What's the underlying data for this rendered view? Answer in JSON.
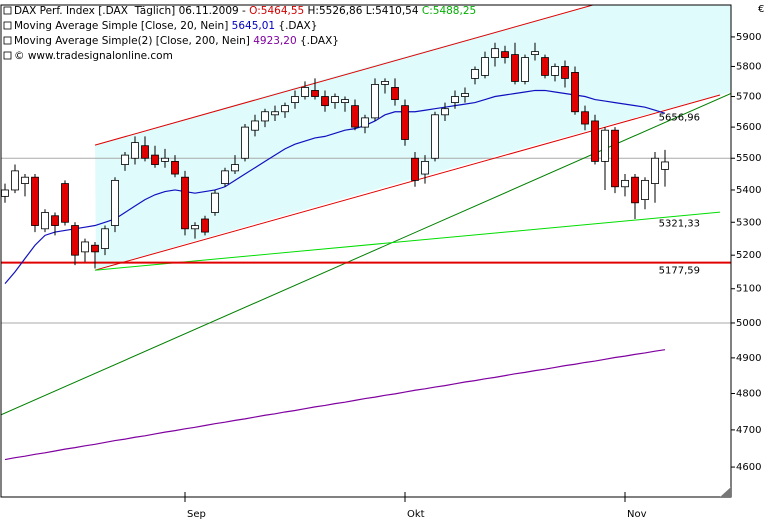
{
  "chart_data": {
    "type": "candlestick",
    "header": [
      [
        {
          "text": "DAX Perf. Index [.DAX  Täglich] 06.11.2009 - "
        },
        {
          "text": "O:5464,55",
          "color": "#d00000"
        },
        {
          "text": " H:5526,86 L:5410,54 "
        },
        {
          "text": "C:5488,25",
          "color": "#00b000"
        }
      ],
      [
        {
          "text": "Moving Average Simple [Close, 20, Nein] "
        },
        {
          "text": "5645,01",
          "color": "#0000c0"
        },
        {
          "text": " {.DAX}"
        }
      ],
      [
        {
          "text": "Moving Average Simple(2) [Close, 200, Nein] "
        },
        {
          "text": "4923,20",
          "color": "#8000a0"
        },
        {
          "text": " {.DAX}"
        }
      ],
      [
        {
          "text": "© www.tradesignalonline.com"
        }
      ]
    ],
    "currency": "€",
    "categories": [
      null,
      null,
      null,
      null,
      null,
      null,
      null,
      null,
      null,
      null,
      null,
      null,
      null,
      null,
      null,
      null,
      null,
      null,
      "Sep",
      null,
      null,
      null,
      null,
      null,
      null,
      null,
      null,
      null,
      null,
      null,
      null,
      null,
      null,
      null,
      null,
      null,
      null,
      null,
      null,
      null,
      "Okt",
      null,
      null,
      null,
      null,
      null,
      null,
      null,
      null,
      null,
      null,
      null,
      null,
      null,
      null,
      null,
      null,
      null,
      null,
      null,
      null,
      null,
      "Nov",
      null,
      null,
      null,
      null
    ],
    "open": [
      5380,
      5400,
      5420,
      5440,
      5280,
      5320,
      5420,
      5290,
      5210,
      5230,
      5220,
      5290,
      5480,
      5500,
      5540,
      5510,
      5490,
      5490,
      5440,
      5280,
      5310,
      5330,
      5420,
      5460,
      5500,
      5590,
      5620,
      5640,
      5650,
      5680,
      5700,
      5720,
      5700,
      5680,
      5680,
      5670,
      5600,
      5630,
      5740,
      5730,
      5670,
      5500,
      5450,
      5500,
      5640,
      5680,
      5700,
      5760,
      5770,
      5830,
      5850,
      5840,
      5750,
      5840,
      5830,
      5770,
      5800,
      5780,
      5650,
      5620,
      5490,
      5590,
      5410,
      5440,
      5370,
      5420,
      5464.55
    ],
    "high": [
      5420,
      5480,
      5450,
      5450,
      5340,
      5330,
      5430,
      5300,
      5250,
      5240,
      5290,
      5440,
      5520,
      5570,
      5570,
      5540,
      5530,
      5510,
      5460,
      5300,
      5320,
      5400,
      5470,
      5510,
      5610,
      5640,
      5660,
      5670,
      5680,
      5720,
      5750,
      5760,
      5720,
      5710,
      5700,
      5690,
      5640,
      5760,
      5760,
      5760,
      5690,
      5520,
      5510,
      5650,
      5680,
      5720,
      5730,
      5800,
      5850,
      5880,
      5870,
      5880,
      5840,
      5880,
      5840,
      5810,
      5820,
      5800,
      5670,
      5640,
      5600,
      5600,
      5450,
      5450,
      5440,
      5520,
      5526.86
    ],
    "low": [
      5360,
      5390,
      5380,
      5270,
      5270,
      5260,
      5290,
      5170,
      5180,
      5160,
      5200,
      5270,
      5460,
      5480,
      5490,
      5470,
      5470,
      5440,
      5260,
      5250,
      5260,
      5320,
      5410,
      5450,
      5490,
      5570,
      5600,
      5620,
      5630,
      5660,
      5690,
      5690,
      5650,
      5660,
      5650,
      5590,
      5580,
      5620,
      5710,
      5670,
      5540,
      5410,
      5420,
      5490,
      5620,
      5660,
      5680,
      5740,
      5760,
      5800,
      5810,
      5740,
      5740,
      5820,
      5760,
      5750,
      5730,
      5640,
      5590,
      5480,
      5400,
      5390,
      5380,
      5310,
      5340,
      5360,
      5410.54
    ],
    "close": [
      5400,
      5460,
      5440,
      5290,
      5330,
      5290,
      5300,
      5200,
      5240,
      5210,
      5280,
      5430,
      5510,
      5550,
      5500,
      5480,
      5500,
      5450,
      5280,
      5290,
      5270,
      5390,
      5460,
      5480,
      5600,
      5620,
      5650,
      5650,
      5670,
      5700,
      5730,
      5700,
      5670,
      5700,
      5690,
      5600,
      5630,
      5740,
      5750,
      5690,
      5560,
      5430,
      5490,
      5640,
      5660,
      5700,
      5710,
      5790,
      5830,
      5860,
      5830,
      5750,
      5830,
      5850,
      5770,
      5800,
      5760,
      5650,
      5610,
      5490,
      5590,
      5410,
      5430,
      5360,
      5430,
      5500,
      5488.25
    ],
    "up_color": "#ffffff",
    "down_color": "#e00000",
    "lines": [
      {
        "color": "#1010c0",
        "values": [
          5115,
          5150,
          5190,
          5230,
          5260,
          5270,
          5275,
          5280,
          5285,
          5290,
          5300,
          5310,
          5330,
          5350,
          5370,
          5385,
          5395,
          5400,
          5395,
          5390,
          5395,
          5400,
          5410,
          5430,
          5450,
          5470,
          5490,
          5510,
          5530,
          5545,
          5555,
          5565,
          5570,
          5580,
          5590,
          5595,
          5605,
          5620,
          5640,
          5650,
          5650,
          5650,
          5655,
          5660,
          5665,
          5670,
          5675,
          5680,
          5690,
          5700,
          5705,
          5710,
          5715,
          5720,
          5720,
          5715,
          5710,
          5705,
          5700,
          5690,
          5685,
          5680,
          5675,
          5670,
          5665,
          5655,
          5645.01
        ]
      },
      {
        "color": "#8000a0",
        "values": [
          4620,
          4625,
          4629,
          4634,
          4638,
          4643,
          4648,
          4652,
          4657,
          4661,
          4666,
          4671,
          4675,
          4680,
          4684,
          4689,
          4694,
          4698,
          4703,
          4707,
          4712,
          4717,
          4721,
          4726,
          4730,
          4735,
          4740,
          4744,
          4749,
          4753,
          4758,
          4763,
          4767,
          4772,
          4776,
          4781,
          4786,
          4790,
          4795,
          4799,
          4804,
          4809,
          4813,
          4818,
          4822,
          4827,
          4832,
          4836,
          4841,
          4845,
          4850,
          4855,
          4859,
          4864,
          4868,
          4873,
          4878,
          4882,
          4887,
          4891,
          4896,
          4901,
          4905,
          4910,
          4914,
          4919,
          4923.2
        ]
      }
    ],
    "trendlines": [
      {
        "color": "#e00000",
        "x": [
          9,
          59.5
        ],
        "y": [
          5542,
          6017
        ]
      },
      {
        "color": "#e00000",
        "x": [
          9,
          71.5
        ],
        "y": [
          5155,
          5705
        ]
      },
      {
        "color": "#008000",
        "x": [
          -0.5,
          74.5
        ],
        "y": [
          4740,
          5738
        ]
      },
      {
        "color": "#00dd00",
        "x": [
          9,
          71.5
        ],
        "y": [
          5155,
          5331
        ]
      }
    ],
    "channel_color": "#e0fbfb",
    "hline": {
      "value": 5177.59,
      "color": "#e00000"
    },
    "annotations": [
      {
        "value": 5656.96,
        "label": "5656,96",
        "color": "#e00000"
      },
      {
        "value": 5321.33,
        "label": "5321,33",
        "color": "#00c000"
      },
      {
        "value": 5177.59,
        "label": "5177,59",
        "color": "#e00000"
      }
    ],
    "gridlines": [
      5000,
      5500
    ],
    "log_scale": true,
    "ylim": [
      4521,
      6010
    ],
    "yticks": [
      4600,
      4700,
      4800,
      4900,
      5000,
      5100,
      5200,
      5300,
      5400,
      5500,
      5600,
      5700,
      5800,
      5900
    ]
  }
}
